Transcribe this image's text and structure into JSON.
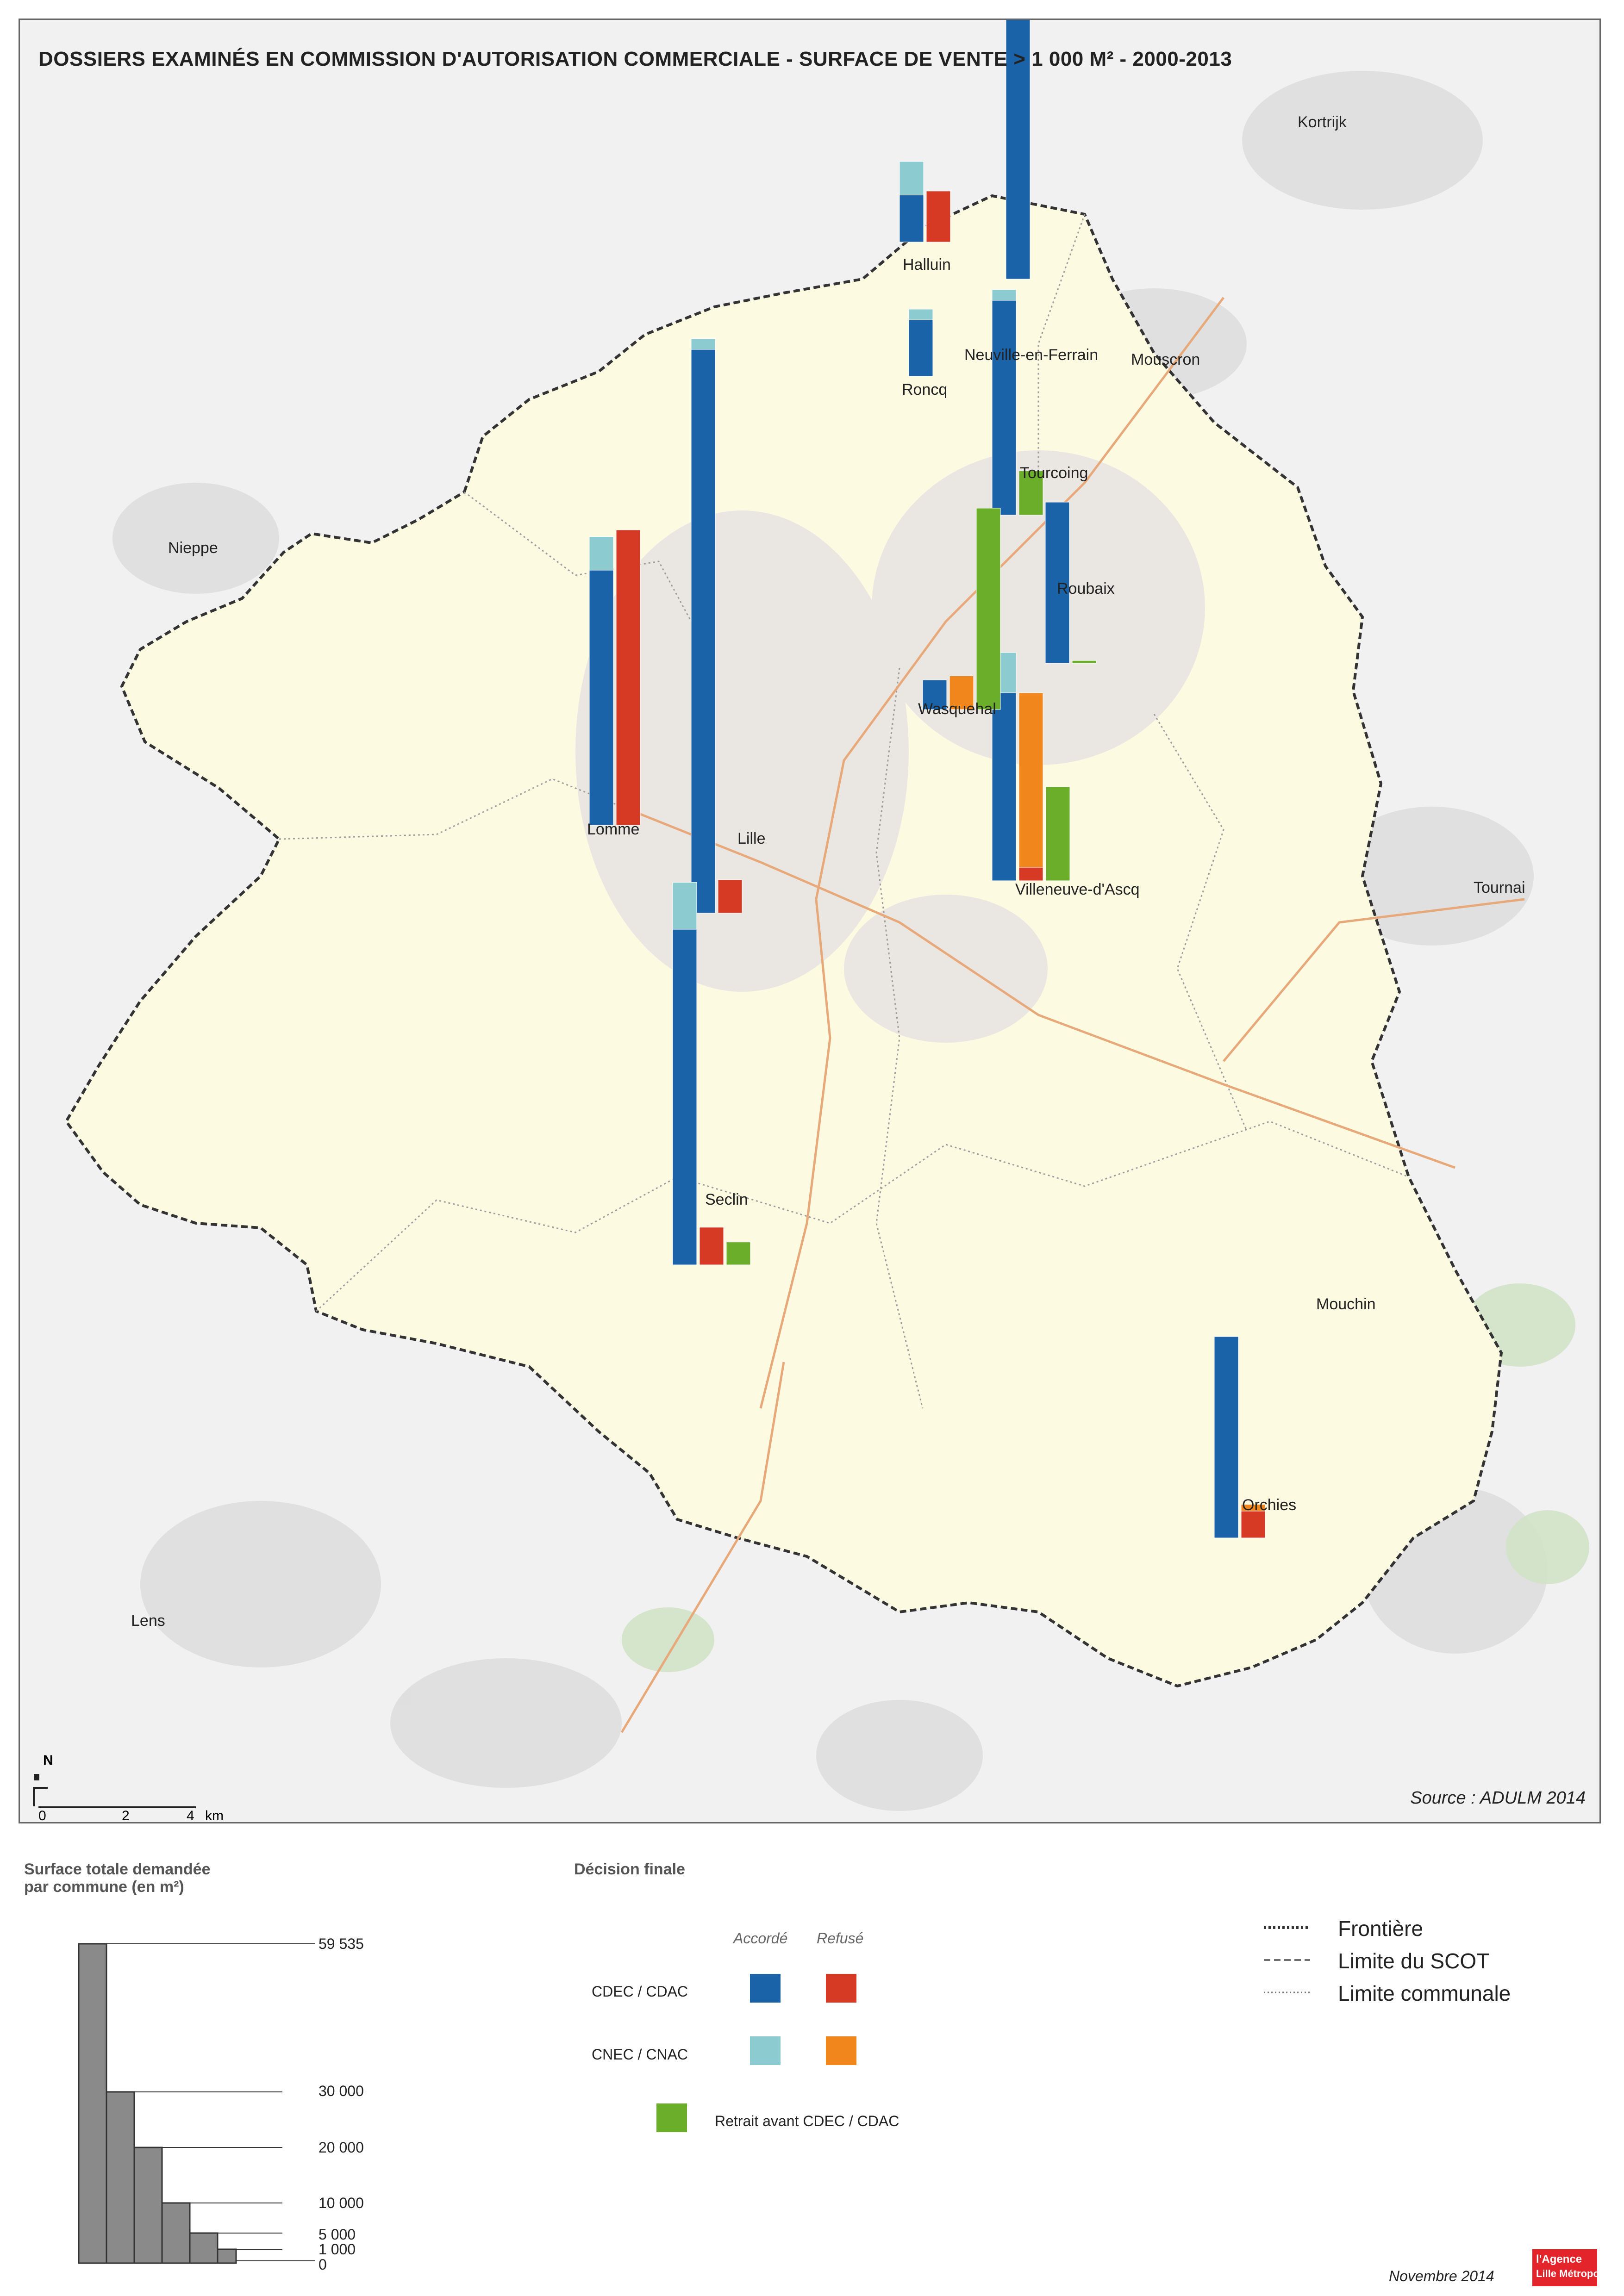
{
  "title": "DOSSIERS EXAMINÉS EN COMMISSION D'AUTORISATION COMMERCIALE - SURFACE DE VENTE > 1 000 M² - 2000-2013",
  "source": "Source : ADULM 2014",
  "date": "Novembre 2014",
  "logo": {
    "line1": "l'Agence",
    "line2": "Lille Métropole"
  },
  "colors": {
    "cdec_accorde": "#1a63a8",
    "cdec_refuse": "#d63a25",
    "cnec_accorde": "#8ccbd0",
    "cnec_refuse": "#f0861c",
    "retrait": "#6aae2a"
  },
  "legend": {
    "surface_title_1": "Surface totale demandée",
    "surface_title_2": "par commune (en m²)",
    "surface_ticks": [
      "59 535",
      "30 000",
      "20 000",
      "10 000",
      "5 000",
      "1 000",
      "0"
    ],
    "decision_title": "Décision finale",
    "col_accorde": "Accordé",
    "col_refuse": "Refusé",
    "row_cdec": "CDEC / CDAC",
    "row_cnec": "CNEC / CNAC",
    "retrait_label": "Retrait avant CDEC / CDAC",
    "line_frontiere": "Frontière",
    "line_scot": "Limite du SCOT",
    "line_communale": "Limite communale"
  },
  "scale": {
    "ticks": [
      "0",
      "2",
      "4"
    ],
    "unit": "km",
    "north": "N"
  },
  "outside_labels": [
    "Kortrijk",
    "Mouscron",
    "Nieppe",
    "Tournai",
    "Lens",
    "Mouchin"
  ],
  "communes": [
    {
      "name": "Halluin",
      "bars": [
        [
          0.35,
          0.25,
          0,
          0,
          0,
          0.0
        ],
        [
          0.0,
          0.0,
          0.38,
          0,
          0,
          0.0
        ]
      ]
    },
    {
      "name": "Neuville-en-Ferrain",
      "bars": [
        [
          2.3,
          0,
          0,
          0,
          0,
          0
        ]
      ]
    },
    {
      "name": "Roncq",
      "bars": [
        [
          0.42,
          0.08,
          0,
          0,
          0,
          0
        ]
      ]
    },
    {
      "name": "Tourcoing",
      "bars": [
        [
          1.6,
          0.08,
          0,
          0,
          0,
          0
        ],
        [
          0,
          0,
          0,
          0,
          0.33,
          0
        ]
      ]
    },
    {
      "name": "Roubaix",
      "bars": [
        [
          1.2,
          0,
          0,
          0,
          0,
          0
        ],
        [
          0,
          0,
          0,
          0,
          0.02,
          0
        ]
      ]
    },
    {
      "name": "Lille",
      "bars": [
        [
          4.2,
          0.08,
          0,
          0,
          0,
          0
        ],
        [
          0,
          0,
          0.25,
          0,
          0,
          0
        ]
      ]
    },
    {
      "name": "Lomme",
      "bars": [
        [
          1.9,
          0.25,
          0,
          0,
          0,
          0
        ],
        [
          0,
          0,
          2.2,
          0,
          0,
          0
        ]
      ]
    },
    {
      "name": "Seclin",
      "bars": [
        [
          2.5,
          0.35,
          0,
          0,
          0,
          0
        ],
        [
          0,
          0,
          0.28,
          0,
          0,
          0
        ],
        [
          0,
          0,
          0,
          0,
          0.17,
          0
        ]
      ]
    },
    {
      "name": "Villeneuve-d'Ascq",
      "bars": [
        [
          1.4,
          0.3,
          0,
          0,
          0,
          0
        ],
        [
          0,
          0,
          0.1,
          1.3,
          0,
          0
        ],
        [
          0,
          0,
          0,
          0,
          0.7,
          0
        ]
      ]
    },
    {
      "name": "Wasquehal",
      "bars": [
        [
          0.22,
          0,
          0,
          0,
          0,
          0
        ],
        [
          0,
          0,
          0,
          0.25,
          0,
          0
        ],
        [
          0,
          0,
          0,
          0,
          1.5,
          0
        ]
      ]
    },
    {
      "name": "Orchies",
      "bars": [
        [
          1.5,
          0,
          0,
          0,
          0,
          0
        ],
        [
          0,
          0,
          0.2,
          0.05,
          0,
          0
        ]
      ]
    }
  ]
}
